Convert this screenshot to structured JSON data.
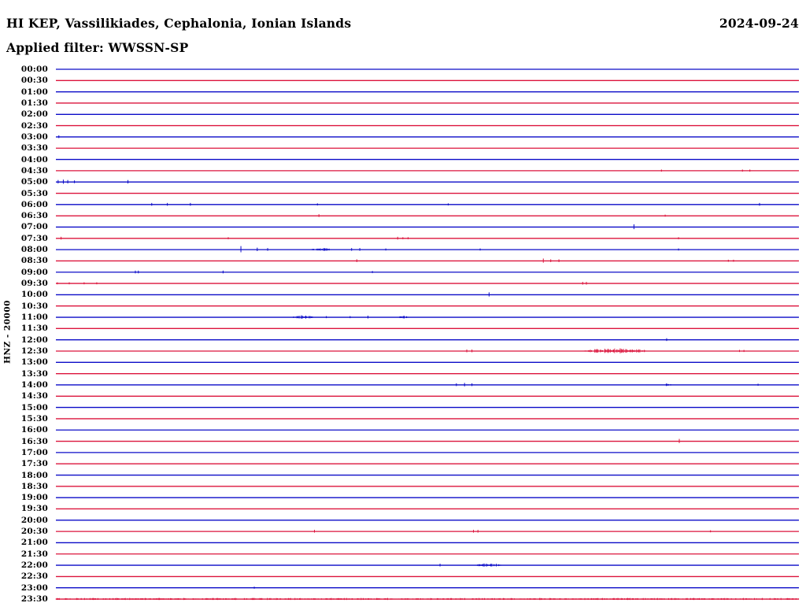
{
  "header": {
    "station_line": "HI KEP, Vassilikiades, Cephalonia, Ionian Islands",
    "date": "2024-09-24",
    "filter_line": "Applied filter: WWSSN-SP"
  },
  "axis": {
    "y_label": "HNZ - 20000"
  },
  "colors": {
    "trace_hour": "#0b0bc8",
    "trace_half_hour": "#dc143c",
    "text": "#000000",
    "background": "#ffffff"
  },
  "chart_data": {
    "type": "line",
    "subtype": "helicorder-dayplot",
    "title": "HI KEP, Vassilikiades, Cephalonia, Ionian Islands",
    "date": "2024-09-24",
    "filter": "WWSSN-SP",
    "channel": "HNZ",
    "scale": 20000,
    "minutes_per_row": 30,
    "legend_position": "none",
    "grid": false,
    "row_color_rule": "rows starting on the hour are blue, half-hour rows are crimson",
    "rows": [
      "00:00",
      "00:30",
      "01:00",
      "01:30",
      "02:00",
      "02:30",
      "03:00",
      "03:30",
      "04:00",
      "04:30",
      "05:00",
      "05:30",
      "06:00",
      "06:30",
      "07:00",
      "07:30",
      "08:00",
      "08:30",
      "09:00",
      "09:30",
      "10:00",
      "10:30",
      "11:00",
      "11:30",
      "12:00",
      "12:30",
      "13:00",
      "13:30",
      "14:00",
      "14:30",
      "15:00",
      "15:30",
      "16:00",
      "16:30",
      "17:00",
      "17:30",
      "18:00",
      "18:30",
      "19:00",
      "19:30",
      "20:00",
      "20:30",
      "21:00",
      "21:30",
      "22:00",
      "22:30",
      "23:00",
      "23:30"
    ],
    "events": [
      {
        "time": "03:00",
        "type": "spike",
        "frac": 0.004,
        "amp": 2
      },
      {
        "time": "04:30",
        "type": "spike",
        "frac": 0.815,
        "amp": 1.5
      },
      {
        "time": "04:30",
        "type": "spike",
        "frac": 0.924,
        "amp": 1.5
      },
      {
        "time": "04:30",
        "type": "spike",
        "frac": 0.934,
        "amp": 1.5
      },
      {
        "time": "05:00",
        "type": "spike",
        "frac": 0.003,
        "amp": 2.5
      },
      {
        "time": "05:00",
        "type": "spike",
        "frac": 0.01,
        "amp": 3
      },
      {
        "time": "05:00",
        "type": "spike",
        "frac": 0.016,
        "amp": 2.5
      },
      {
        "time": "05:00",
        "type": "spike",
        "frac": 0.025,
        "amp": 2
      },
      {
        "time": "05:00",
        "type": "spike",
        "frac": 0.097,
        "amp": 2.5
      },
      {
        "time": "06:00",
        "type": "spike",
        "frac": 0.129,
        "amp": 2
      },
      {
        "time": "06:00",
        "type": "spike",
        "frac": 0.15,
        "amp": 2
      },
      {
        "time": "06:00",
        "type": "spike",
        "frac": 0.181,
        "amp": 2
      },
      {
        "time": "06:00",
        "type": "spike",
        "frac": 0.352,
        "amp": 1.5
      },
      {
        "time": "06:00",
        "type": "spike",
        "frac": 0.528,
        "amp": 1.5
      },
      {
        "time": "06:00",
        "type": "spike",
        "frac": 0.947,
        "amp": 2
      },
      {
        "time": "06:30",
        "type": "spike",
        "frac": 0.354,
        "amp": 2
      },
      {
        "time": "06:30",
        "type": "spike",
        "frac": 0.82,
        "amp": 1.5
      },
      {
        "time": "07:00",
        "type": "spike",
        "frac": 0.778,
        "amp": 3.5
      },
      {
        "time": "07:30",
        "type": "spike",
        "frac": 0.007,
        "amp": 2
      },
      {
        "time": "07:30",
        "type": "spike",
        "frac": 0.232,
        "amp": 1.5
      },
      {
        "time": "07:30",
        "type": "spike",
        "frac": 0.46,
        "amp": 2
      },
      {
        "time": "07:30",
        "type": "spike",
        "frac": 0.467,
        "amp": 1.5
      },
      {
        "time": "07:30",
        "type": "spike",
        "frac": 0.474,
        "amp": 1.5
      },
      {
        "time": "07:30",
        "type": "spike",
        "frac": 0.838,
        "amp": 1.5
      },
      {
        "time": "08:00",
        "type": "spike",
        "frac": 0.249,
        "amp": 4.5
      },
      {
        "time": "08:00",
        "type": "spike",
        "frac": 0.271,
        "amp": 2.5
      },
      {
        "time": "08:00",
        "type": "spike",
        "frac": 0.285,
        "amp": 2
      },
      {
        "time": "08:00",
        "type": "burst",
        "from": 0.341,
        "to": 0.373,
        "amp": 2
      },
      {
        "time": "08:00",
        "type": "spike",
        "frac": 0.398,
        "amp": 2
      },
      {
        "time": "08:00",
        "type": "spike",
        "frac": 0.409,
        "amp": 2
      },
      {
        "time": "08:00",
        "type": "spike",
        "frac": 0.444,
        "amp": 1.5
      },
      {
        "time": "08:00",
        "type": "spike",
        "frac": 0.571,
        "amp": 1.5
      },
      {
        "time": "08:00",
        "type": "spike",
        "frac": 0.838,
        "amp": 1.5
      },
      {
        "time": "08:30",
        "type": "spike",
        "frac": 0.405,
        "amp": 2
      },
      {
        "time": "08:30",
        "type": "spike",
        "frac": 0.656,
        "amp": 3
      },
      {
        "time": "08:30",
        "type": "spike",
        "frac": 0.666,
        "amp": 2
      },
      {
        "time": "08:30",
        "type": "spike",
        "frac": 0.677,
        "amp": 2
      },
      {
        "time": "08:30",
        "type": "spike",
        "frac": 0.905,
        "amp": 1.5
      },
      {
        "time": "08:30",
        "type": "spike",
        "frac": 0.912,
        "amp": 1.5
      },
      {
        "time": "09:00",
        "type": "spike",
        "frac": 0.107,
        "amp": 2
      },
      {
        "time": "09:00",
        "type": "spike",
        "frac": 0.111,
        "amp": 2
      },
      {
        "time": "09:00",
        "type": "spike",
        "frac": 0.225,
        "amp": 2
      },
      {
        "time": "09:00",
        "type": "spike",
        "frac": 0.426,
        "amp": 1.5
      },
      {
        "time": "09:30",
        "type": "spike",
        "frac": 0.002,
        "amp": 1.5
      },
      {
        "time": "09:30",
        "type": "spike",
        "frac": 0.018,
        "amp": 1.5
      },
      {
        "time": "09:30",
        "type": "spike",
        "frac": 0.038,
        "amp": 1.5
      },
      {
        "time": "09:30",
        "type": "spike",
        "frac": 0.055,
        "amp": 1.5
      },
      {
        "time": "09:30",
        "type": "spike",
        "frac": 0.709,
        "amp": 2
      },
      {
        "time": "09:30",
        "type": "spike",
        "frac": 0.714,
        "amp": 2
      },
      {
        "time": "10:00",
        "type": "spike",
        "frac": 0.583,
        "amp": 3
      },
      {
        "time": "11:00",
        "type": "burst",
        "from": 0.317,
        "to": 0.348,
        "amp": 2.5
      },
      {
        "time": "11:00",
        "type": "spike",
        "frac": 0.364,
        "amp": 1.5
      },
      {
        "time": "11:00",
        "type": "spike",
        "frac": 0.396,
        "amp": 1.5
      },
      {
        "time": "11:00",
        "type": "spike",
        "frac": 0.42,
        "amp": 2
      },
      {
        "time": "11:00",
        "type": "burst",
        "from": 0.46,
        "to": 0.476,
        "amp": 2
      },
      {
        "time": "12:00",
        "type": "spike",
        "frac": 0.822,
        "amp": 2
      },
      {
        "time": "12:30",
        "type": "spike",
        "frac": 0.553,
        "amp": 2
      },
      {
        "time": "12:30",
        "type": "spike",
        "frac": 0.56,
        "amp": 2
      },
      {
        "time": "12:30",
        "type": "burst",
        "from": 0.709,
        "to": 0.799,
        "amp": 3.5
      },
      {
        "time": "12:30",
        "type": "spike",
        "frac": 0.92,
        "amp": 1.5
      },
      {
        "time": "12:30",
        "type": "spike",
        "frac": 0.926,
        "amp": 1.5
      },
      {
        "time": "14:00",
        "type": "spike",
        "frac": 0.539,
        "amp": 2
      },
      {
        "time": "14:00",
        "type": "spike",
        "frac": 0.55,
        "amp": 2.5
      },
      {
        "time": "14:00",
        "type": "spike",
        "frac": 0.56,
        "amp": 2
      },
      {
        "time": "14:00",
        "type": "burst",
        "from": 0.817,
        "to": 0.828,
        "amp": 2.5
      },
      {
        "time": "14:00",
        "type": "spike",
        "frac": 0.945,
        "amp": 1.5
      },
      {
        "time": "16:30",
        "type": "spike",
        "frac": 0.839,
        "amp": 3
      },
      {
        "time": "20:30",
        "type": "spike",
        "frac": 0.348,
        "amp": 2
      },
      {
        "time": "20:30",
        "type": "spike",
        "frac": 0.562,
        "amp": 2
      },
      {
        "time": "20:30",
        "type": "spike",
        "frac": 0.568,
        "amp": 2
      },
      {
        "time": "20:30",
        "type": "spike",
        "frac": 0.881,
        "amp": 1.5
      },
      {
        "time": "22:00",
        "type": "spike",
        "frac": 0.517,
        "amp": 2
      },
      {
        "time": "22:00",
        "type": "burst",
        "from": 0.563,
        "to": 0.6,
        "amp": 2.5
      },
      {
        "time": "23:00",
        "type": "spike",
        "frac": 0.267,
        "amp": 1.5
      },
      {
        "time": "23:30",
        "type": "burst",
        "from": 0.0,
        "to": 1.0,
        "amp": 1.4
      }
    ]
  }
}
